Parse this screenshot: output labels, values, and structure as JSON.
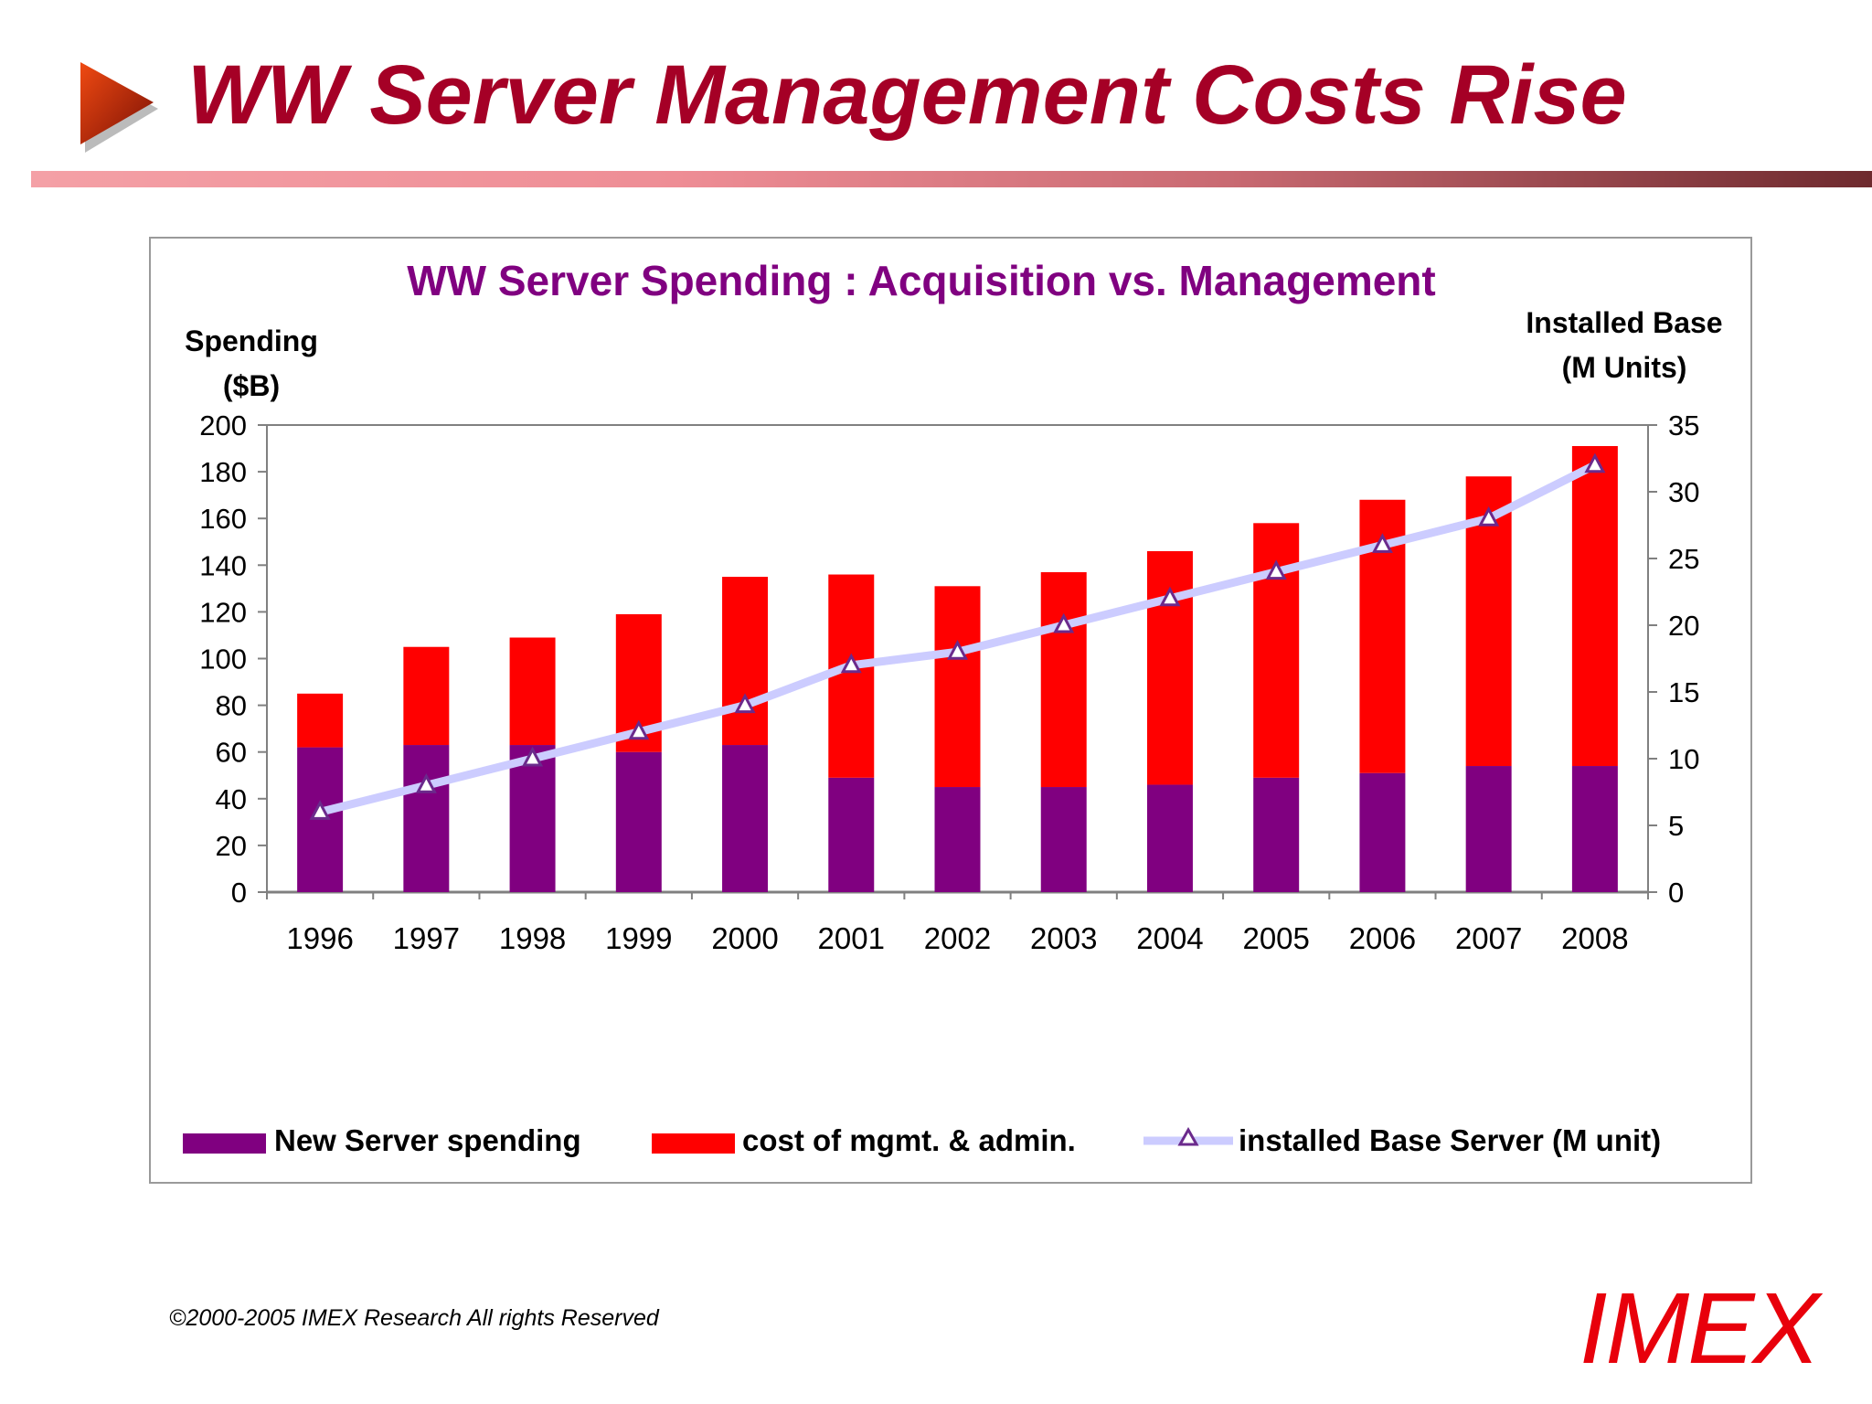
{
  "slide": {
    "title": "WW Server Management Costs Rise",
    "footer": "©2000-2005  IMEX Research All rights Reserved",
    "logo_text": "IMEX",
    "title_color": "#a50026",
    "logo_color": "#e8000b"
  },
  "chart_data": {
    "type": "bar",
    "stacked": true,
    "title": "WW Server Spending : Acquisition vs. Management",
    "ylabel": [
      "Spending",
      "($B)"
    ],
    "y2label": [
      "Installed Base",
      "(M Units)"
    ],
    "categories": [
      "1996",
      "1997",
      "1998",
      "1999",
      "2000",
      "2001",
      "2002",
      "2003",
      "2004",
      "2005",
      "2006",
      "2007",
      "2008"
    ],
    "ylim": [
      0,
      200
    ],
    "yticks": [
      0,
      20,
      40,
      60,
      80,
      100,
      120,
      140,
      160,
      180,
      200
    ],
    "y2lim": [
      0,
      35
    ],
    "y2ticks": [
      0,
      5,
      10,
      15,
      20,
      25,
      30,
      35
    ],
    "series": [
      {
        "name": "New Server spending",
        "kind": "bar",
        "color": "#800080",
        "values": [
          62,
          63,
          63,
          60,
          63,
          49,
          45,
          45,
          46,
          49,
          51,
          54,
          54
        ]
      },
      {
        "name": "cost of mgmt. & admin.",
        "kind": "bar",
        "color": "#ff0000",
        "values": [
          23,
          42,
          46,
          59,
          72,
          87,
          86,
          92,
          100,
          109,
          117,
          124,
          137
        ]
      },
      {
        "name": "installed Base Server (M unit)",
        "kind": "line",
        "axis": "right",
        "color": "#ccccff",
        "marker": "triangle",
        "values": [
          6,
          8,
          10,
          12,
          14,
          17,
          18,
          20,
          22,
          24,
          26,
          28,
          32
        ]
      }
    ],
    "legend_position": "bottom",
    "grid": false
  }
}
